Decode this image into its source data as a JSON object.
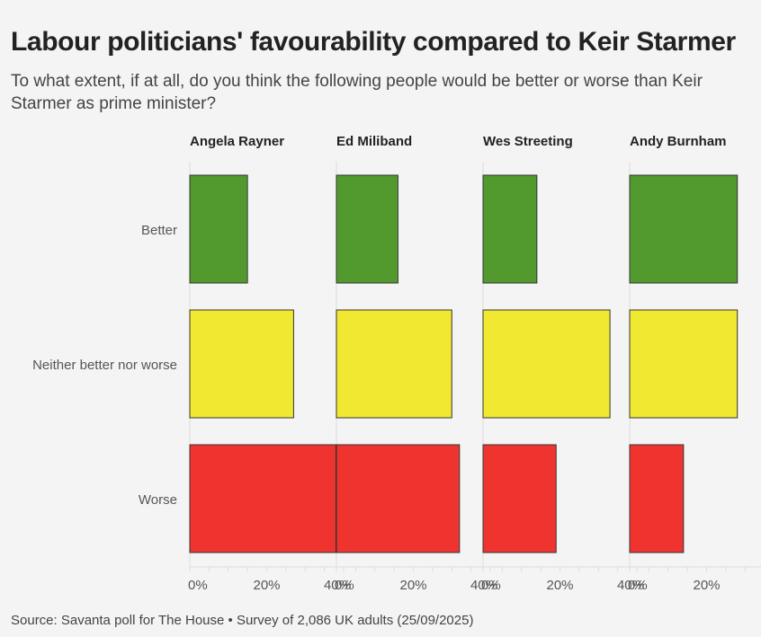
{
  "title": "Labour politicians' favourability compared to Keir Starmer",
  "subtitle": "To what extent, if at all, do you think the following people would be better or worse than Keir Starmer as prime minister?",
  "source": "Source: Savanta poll for The House • Survey of 2,086 UK adults (25/09/2025)",
  "chart_data": {
    "type": "bar",
    "orientation": "horizontal",
    "facets": [
      "Angela Rayner",
      "Ed Miliband",
      "Wes Streeting",
      "Andy Burnham"
    ],
    "categories": [
      "Better",
      "Neither better nor worse",
      "Worse"
    ],
    "colors": [
      "#529a2e",
      "#f0e831",
      "#ef3430"
    ],
    "values": [
      [
        15,
        27,
        38
      ],
      [
        16,
        30,
        32
      ],
      [
        14,
        33,
        19
      ],
      [
        28,
        28,
        14
      ]
    ],
    "xlim": [
      0,
      40
    ],
    "xticks": [
      0,
      20,
      40
    ],
    "xtick_labels": [
      "0%",
      "20%",
      "40%"
    ],
    "unit": "%"
  }
}
